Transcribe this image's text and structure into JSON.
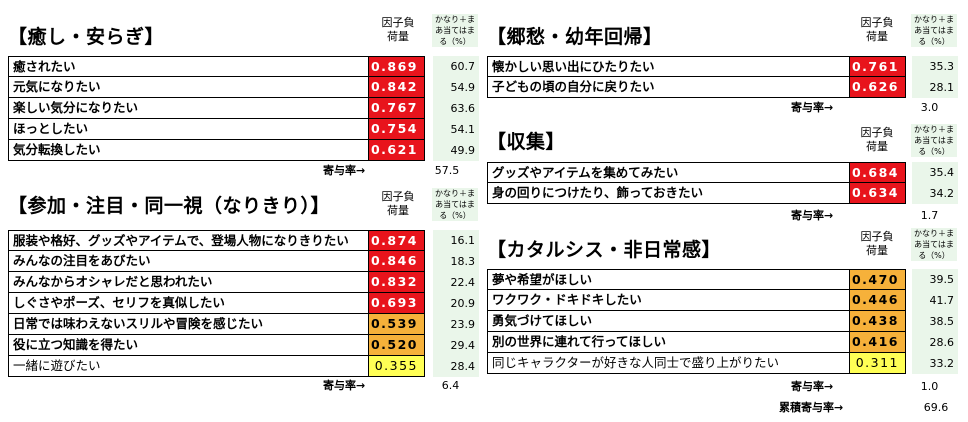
{
  "header_factor": "因子負荷量",
  "header_factor_l1": "因子負",
  "header_factor_l2": "荷量",
  "header_pct_l1": "かなり＋ま",
  "header_pct_l2": "あ当てはま",
  "header_pct_l3": "る（%）",
  "contrib_label": "寄与率→",
  "cumulative_label": "累積寄与率→",
  "cumulative_value": "69.6",
  "panels": [
    {
      "title": "【癒し・安らぎ】",
      "contribution": "57.5",
      "rows": [
        {
          "item": "癒されたい",
          "value": "0.869",
          "pct": "60.7",
          "level": "red"
        },
        {
          "item": "元気になりたい",
          "value": "0.842",
          "pct": "54.9",
          "level": "red"
        },
        {
          "item": "楽しい気分になりたい",
          "value": "0.767",
          "pct": "63.6",
          "level": "red"
        },
        {
          "item": "ほっとしたい",
          "value": "0.754",
          "pct": "54.1",
          "level": "red"
        },
        {
          "item": "気分転換したい",
          "value": "0.621",
          "pct": "49.9",
          "level": "red"
        }
      ]
    },
    {
      "title": "【参加・注目・同一視（なりきり）】",
      "contribution": "6.4",
      "rows": [
        {
          "item": "服装や格好、グッズやアイテムで、登場人物になりきりたい",
          "value": "0.874",
          "pct": "16.1",
          "level": "red"
        },
        {
          "item": "みんなの注目をあびたい",
          "value": "0.846",
          "pct": "18.3",
          "level": "red"
        },
        {
          "item": "みんなからオシャレだと思われたい",
          "value": "0.832",
          "pct": "22.4",
          "level": "red"
        },
        {
          "item": "しぐさやポーズ、セリフを真似したい",
          "value": "0.693",
          "pct": "20.9",
          "level": "red"
        },
        {
          "item": "日常では味わえないスリルや冒険を感じたい",
          "value": "0.539",
          "pct": "23.9",
          "level": "orange"
        },
        {
          "item": "役に立つ知識を得たい",
          "value": "0.520",
          "pct": "29.4",
          "level": "orange"
        },
        {
          "item": "一緒に遊びたい",
          "value": "0.355",
          "pct": "28.4",
          "level": "yellow"
        }
      ]
    },
    {
      "title": "【郷愁・幼年回帰】",
      "contribution": "3.0",
      "rows": [
        {
          "item": "懐かしい思い出にひたりたい",
          "value": "0.761",
          "pct": "35.3",
          "level": "red"
        },
        {
          "item": "子どもの頃の自分に戻りたい",
          "value": "0.626",
          "pct": "28.1",
          "level": "red"
        }
      ]
    },
    {
      "title": "【収集】",
      "contribution": "1.7",
      "rows": [
        {
          "item": "グッズやアイテムを集めてみたい",
          "value": "0.684",
          "pct": "35.4",
          "level": "red"
        },
        {
          "item": "身の回りにつけたり、飾っておきたい",
          "value": "0.634",
          "pct": "34.2",
          "level": "red"
        }
      ]
    },
    {
      "title": "【カタルシス・非日常感】",
      "contribution": "1.0",
      "rows": [
        {
          "item": "夢や希望がほしい",
          "value": "0.470",
          "pct": "39.5",
          "level": "orange"
        },
        {
          "item": "ワクワク・ドキドキしたい",
          "value": "0.446",
          "pct": "41.7",
          "level": "orange"
        },
        {
          "item": "勇気づけてほしい",
          "value": "0.438",
          "pct": "38.5",
          "level": "orange"
        },
        {
          "item": "別の世界に連れて行ってほしい",
          "value": "0.416",
          "pct": "28.6",
          "level": "orange"
        },
        {
          "item": "同じキャラクターが好きな人同士で盛り上がりたい",
          "value": "0.311",
          "pct": "33.2",
          "level": "yellow"
        }
      ]
    }
  ]
}
